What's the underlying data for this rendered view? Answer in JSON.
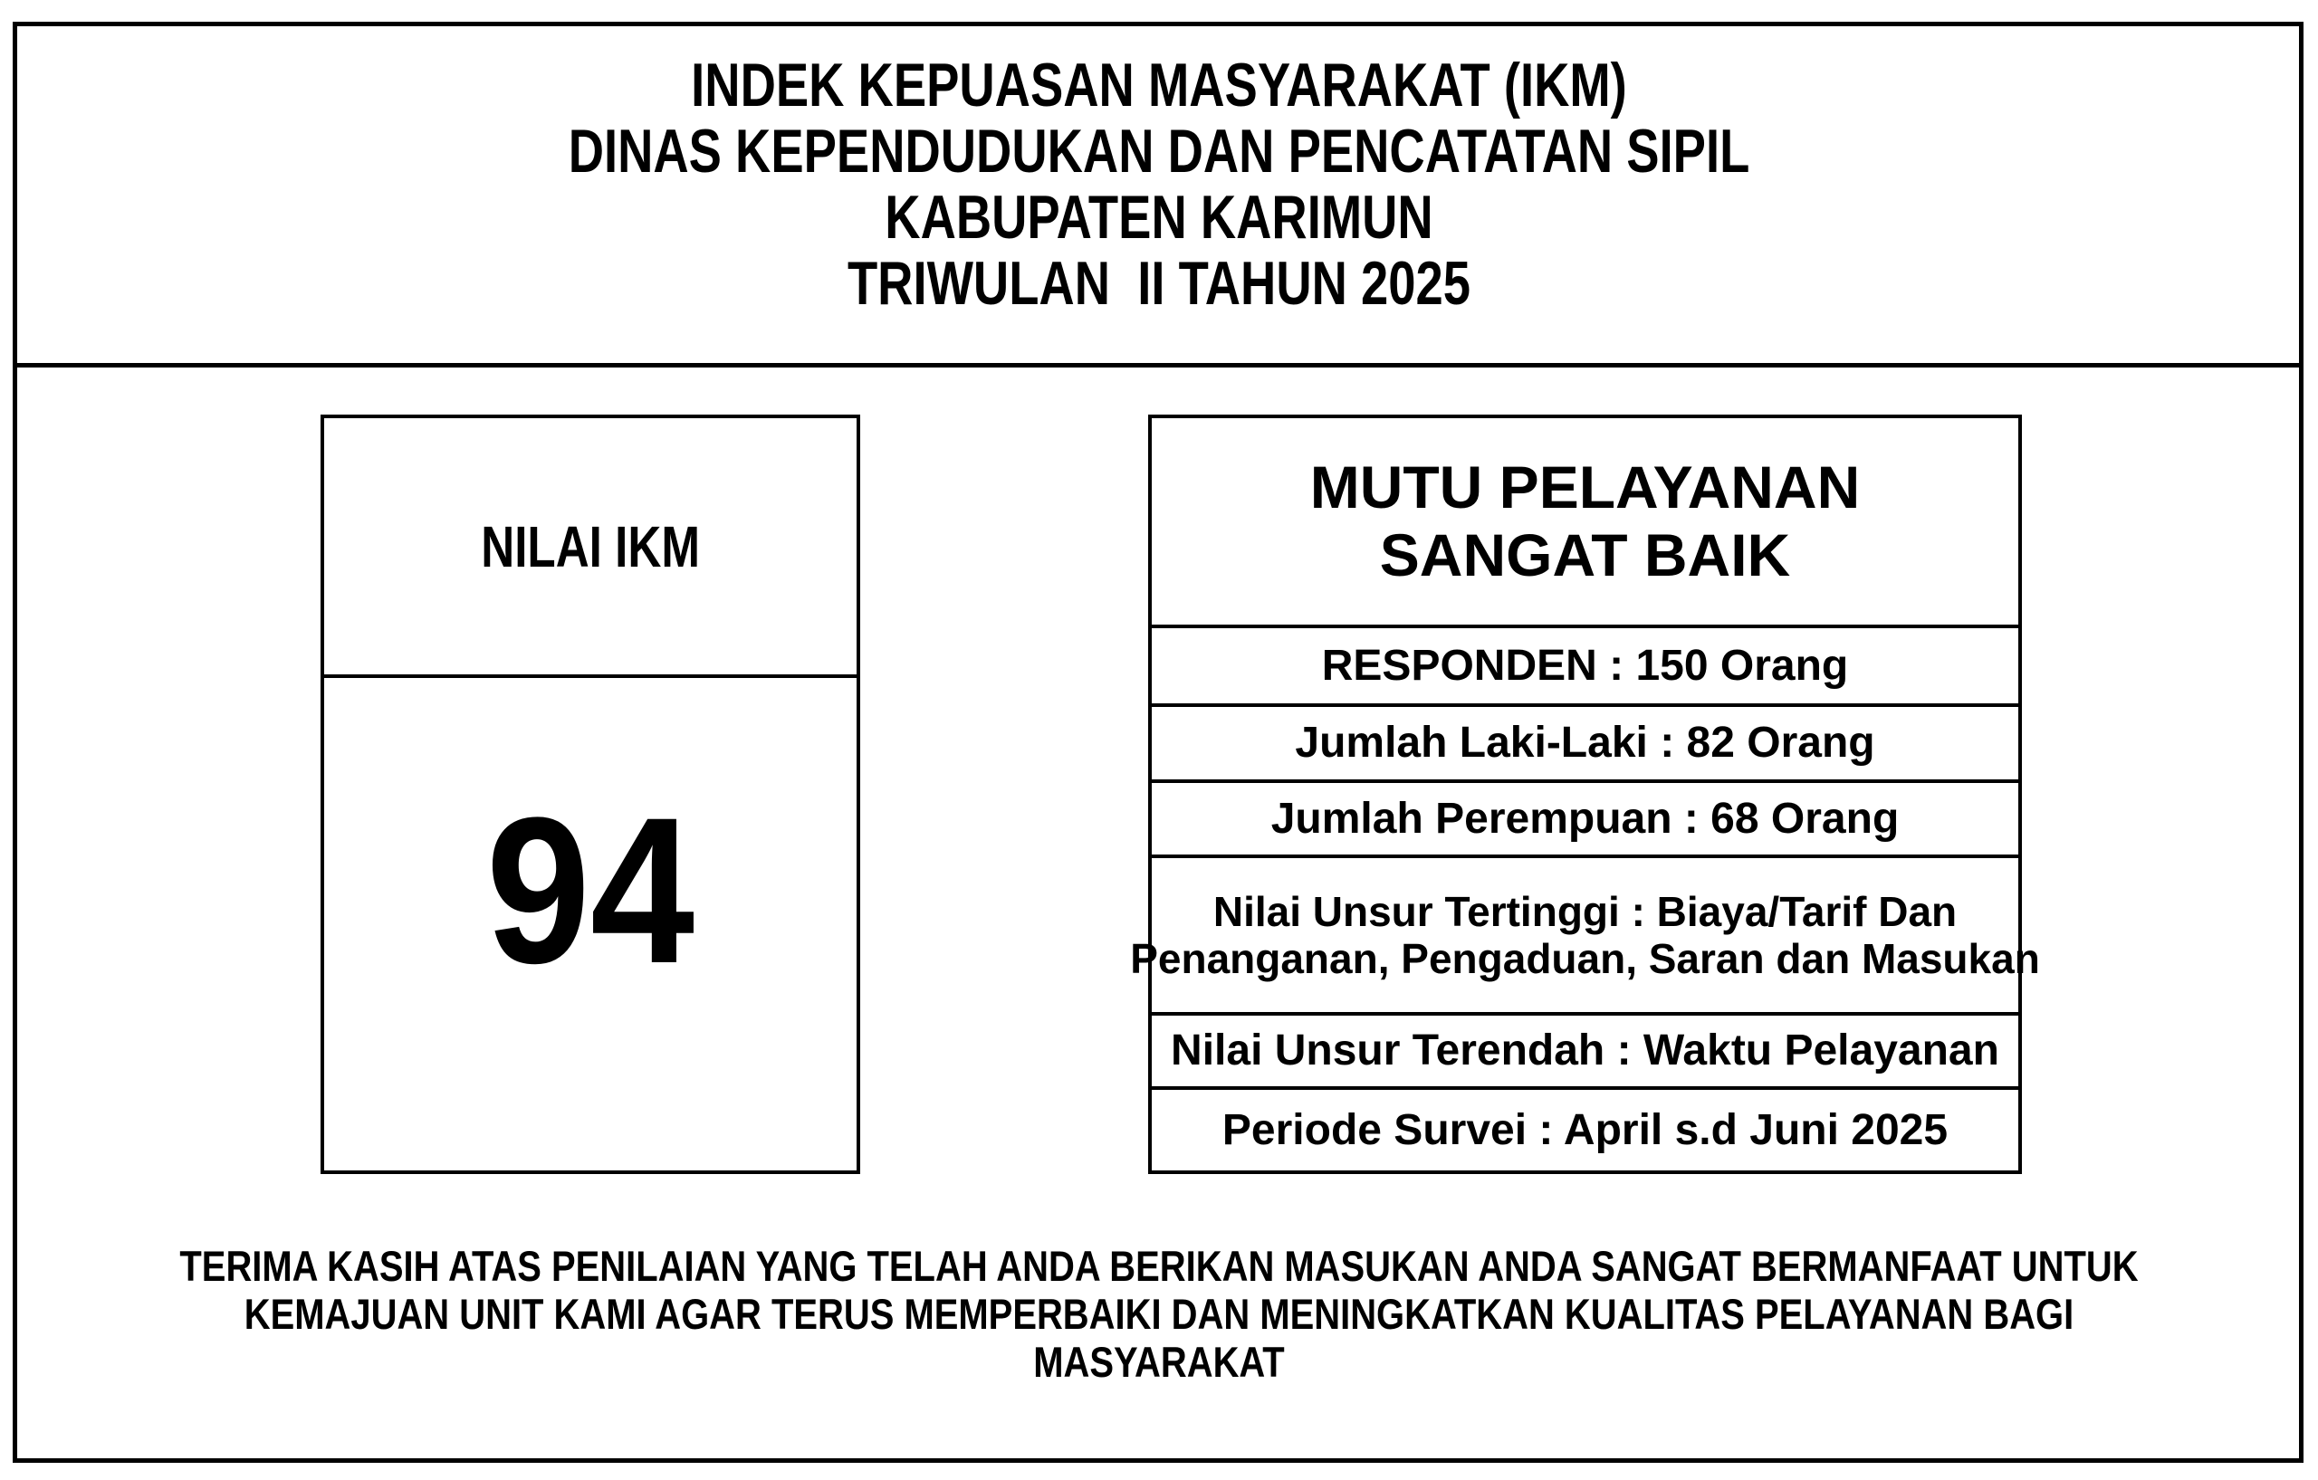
{
  "title": {
    "lines": [
      "INDEK KEPUASAN MASYARAKAT (IKM)",
      "DINAS KEPENDUDUKAN DAN PENCATATAN SIPIL",
      "KABUPATEN KARIMUN",
      "TRIWULAN  II TAHUN 2025"
    ]
  },
  "nilai_ikm": {
    "label": "NILAI IKM",
    "value": "94"
  },
  "mutu": {
    "header_lines": [
      "MUTU PELAYANAN",
      "SANGAT BAIK"
    ],
    "rows": [
      {
        "lines": [
          "RESPONDEN : 150 Orang"
        ]
      },
      {
        "lines": [
          "Jumlah Laki-Laki : 82 Orang"
        ]
      },
      {
        "lines": [
          "Jumlah Perempuan : 68 Orang"
        ]
      },
      {
        "lines": [
          "Nilai Unsur Tertinggi : Biaya/Tarif Dan",
          "Penanganan, Pengaduan, Saran dan Masukan"
        ]
      },
      {
        "lines": [
          "Nilai Unsur Terendah : Waktu Pelayanan"
        ]
      },
      {
        "lines": [
          "Periode Survei : April s.d Juni 2025"
        ]
      }
    ]
  },
  "footer": {
    "lines": [
      "TERIMA KASIH ATAS PENILAIAN YANG TELAH ANDA BERIKAN MASUKAN ANDA SANGAT BERMANFAAT UNTUK",
      "KEMAJUAN UNIT KAMI AGAR TERUS MEMPERBAIKI DAN MENINGKATKAN KUALITAS PELAYANAN BAGI",
      "MASYARAKAT"
    ]
  },
  "colors": {
    "ink": "#000000",
    "background": "#ffffff",
    "border": "#000000"
  }
}
